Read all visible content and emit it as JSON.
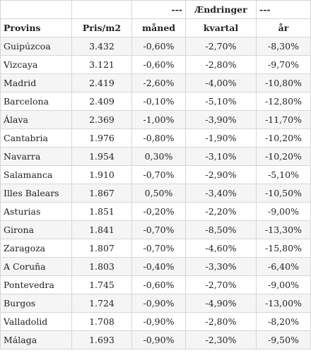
{
  "table": {
    "group_header": {
      "dash_left": "---",
      "label": "Ændringer",
      "dash_right": "---"
    },
    "columns": [
      "Provins",
      "Pris/m2",
      "måned",
      "kvartal",
      "år"
    ],
    "rows": [
      [
        "Guipúzcoa",
        "3.432",
        "-0,60%",
        "-2,70%",
        "-8,30%"
      ],
      [
        "Vizcaya",
        "3.121",
        "-0,60%",
        "-2,80%",
        "-9,70%"
      ],
      [
        "Madrid",
        "2.419",
        "-2,60%",
        "-4,00%",
        "-10,80%"
      ],
      [
        "Barcelona",
        "2.409",
        "-0,10%",
        "-5,10%",
        "-12,80%"
      ],
      [
        "Álava",
        "2.369",
        "-1,00%",
        "-3,90%",
        "-11,70%"
      ],
      [
        "Cantabria",
        "1.976",
        "-0,80%",
        "-1,90%",
        "-10,20%"
      ],
      [
        "Navarra",
        "1.954",
        "0,30%",
        "-3,10%",
        "-10,20%"
      ],
      [
        "Salamanca",
        "1.910",
        "-0,70%",
        "-2,90%",
        "-5,10%"
      ],
      [
        "Illes Balears",
        "1.867",
        "0,50%",
        "-3,40%",
        "-10,50%"
      ],
      [
        "Asturias",
        "1.851",
        "-0,20%",
        "-2,20%",
        "-9,00%"
      ],
      [
        "Girona",
        "1.841",
        "-0,70%",
        "-8,50%",
        "-13,30%"
      ],
      [
        "Zaragoza",
        "1.807",
        "-0,70%",
        "-4,60%",
        "-15,80%"
      ],
      [
        "A Coruña",
        "1.803",
        "-0,40%",
        "-3,30%",
        "-6,40%"
      ],
      [
        "Pontevedra",
        "1.745",
        "-0,60%",
        "-2,70%",
        "-9,00%"
      ],
      [
        "Burgos",
        "1.724",
        "-0,90%",
        "-4,90%",
        "-13,00%"
      ],
      [
        "Valladolid",
        "1.708",
        "-0,90%",
        "-2,80%",
        "-8,20%"
      ],
      [
        "Málaga",
        "1.693",
        "-0,90%",
        "-2,30%",
        "-9,50%"
      ]
    ]
  }
}
